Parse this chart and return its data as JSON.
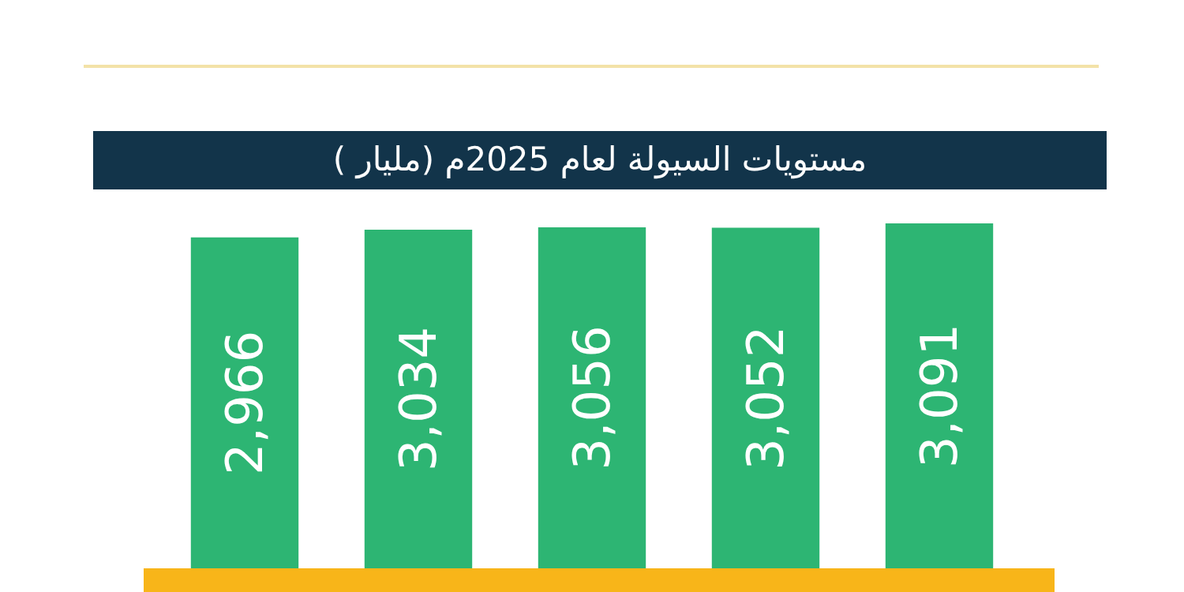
{
  "chart_data": {
    "type": "bar",
    "title": "مستويات السيولة لعام 2025م (مليار )",
    "categories": [
      null,
      null,
      null,
      null,
      null
    ],
    "values": [
      2966,
      3034,
      3056,
      3052,
      3091
    ],
    "color": "#2db573",
    "value_labels": [
      "2,966",
      "3,034",
      "3,056",
      "3,052",
      "3,091"
    ]
  }
}
